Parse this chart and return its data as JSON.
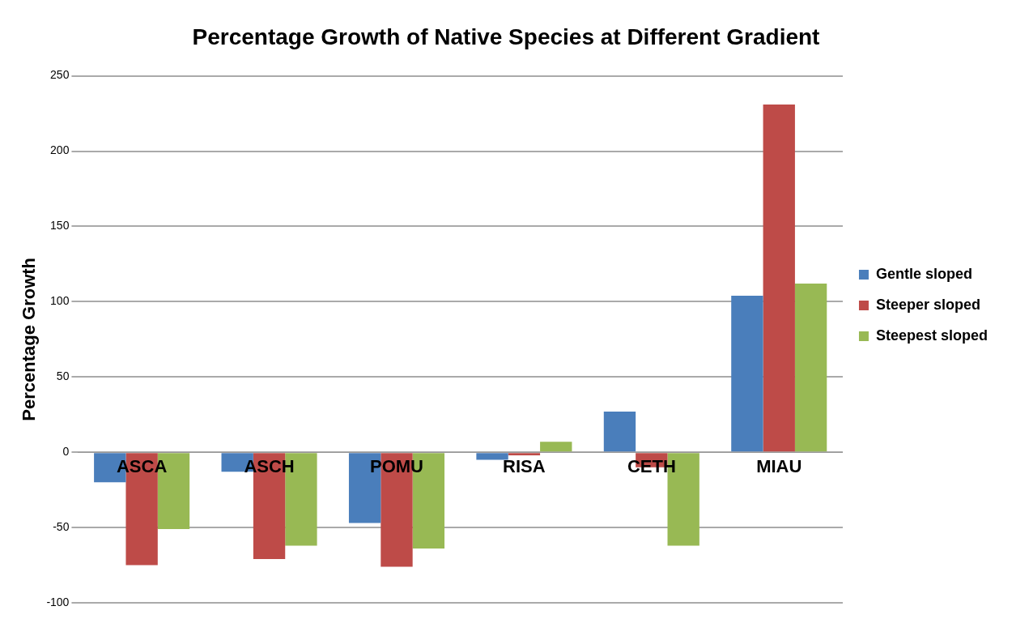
{
  "chart_data": {
    "type": "bar",
    "title": "Percentage Growth of Native Species at Different Gradient",
    "ylabel": "Percentage Growth",
    "categories": [
      "ASCA",
      "ASCH",
      "POMU",
      "RISA",
      "CETH",
      "MIAU"
    ],
    "series": [
      {
        "name": "Gentle sloped",
        "color": "#4a7ebb",
        "values": [
          -20,
          -13,
          -47,
          -5,
          27,
          104
        ]
      },
      {
        "name": "Steeper sloped",
        "color": "#be4b48",
        "values": [
          -75,
          -71,
          -76,
          -2,
          -10,
          231
        ]
      },
      {
        "name": "Steepest sloped",
        "color": "#98b954",
        "values": [
          -51,
          -62,
          -64,
          7,
          -62,
          112
        ]
      }
    ],
    "ylim": [
      -100,
      250
    ],
    "yticks": [
      -100,
      -50,
      0,
      50,
      100,
      150,
      200,
      250
    ],
    "grid": "y",
    "legend": "right"
  }
}
